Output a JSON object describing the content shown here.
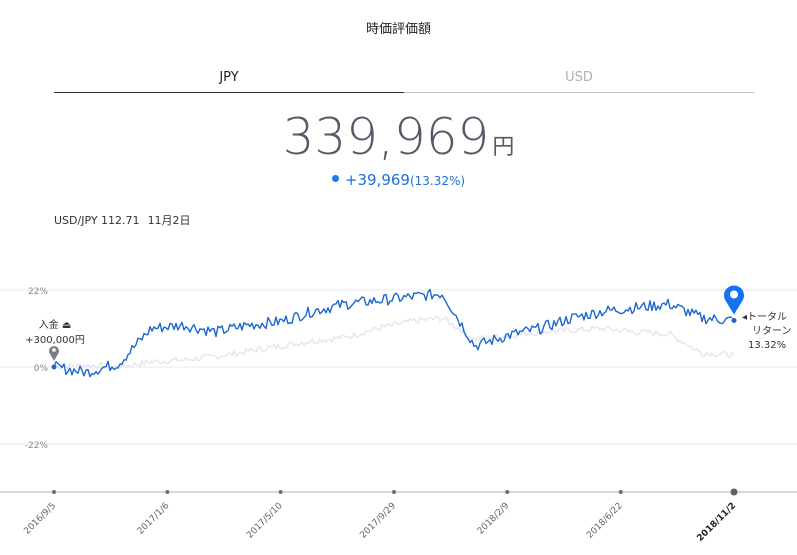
{
  "header": {
    "title": "時価評価額"
  },
  "tabs": [
    {
      "label": "JPY",
      "active": true
    },
    {
      "label": "USD",
      "active": false
    }
  ],
  "summary": {
    "value": "339,969",
    "unit": "円",
    "change": "+39,969",
    "change_pct": "(13.32%)"
  },
  "rate": {
    "pair": "USD/JPY 112.71",
    "date": "11月2日"
  },
  "annotations": {
    "deposit_label": "入金",
    "deposit_amount": "+300,000円",
    "total_line1": "トータル",
    "total_line2": "リターン",
    "total_value": "13.32%"
  },
  "colors": {
    "accent": "#1f6fd8",
    "benchmark": "#e4e6ee",
    "grid": "#e8e9ee"
  },
  "chart_data": {
    "type": "line",
    "y_ticks": [
      "22%",
      "0%",
      "-22%"
    ],
    "x_ticks": [
      "2016/9/5",
      "2017/1/6",
      "2017/5/10",
      "2017/9/29",
      "2018/2/9",
      "2018/6/22",
      "2018/11/2"
    ],
    "ylim": [
      -35,
      22
    ],
    "series": [
      {
        "values": [
          0,
          -1.5,
          1,
          11,
          12,
          10,
          12,
          13,
          16,
          18,
          19,
          20,
          21,
          6,
          9,
          11,
          14,
          16,
          17,
          18,
          14,
          13.3
        ]
      },
      {
        "values": [
          0,
          0.5,
          0,
          1.5,
          2,
          3,
          4.5,
          6,
          7.5,
          8.5,
          11,
          13,
          14,
          8,
          9,
          10,
          10.5,
          11,
          10,
          9.5,
          4,
          3.5
        ]
      }
    ]
  }
}
